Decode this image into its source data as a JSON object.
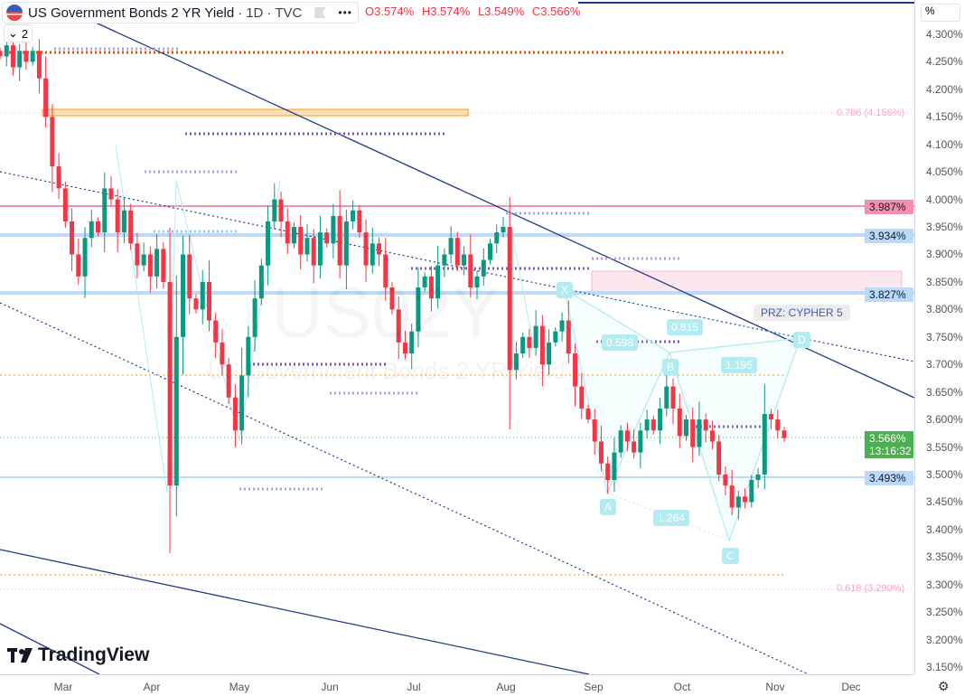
{
  "header": {
    "title": "US Government Bonds 2 YR Yield",
    "interval": "1D",
    "source": "TVC",
    "ohlc": {
      "open": "O3.574%",
      "high": "H3.574%",
      "low": "L3.549%",
      "close": "C3.566%"
    },
    "collapse_count": "2"
  },
  "watermark": {
    "symbol": "US02Y",
    "name": "US Government Bonds 2 YR Yield"
  },
  "logo": "TradingView",
  "colors": {
    "up": "#089981",
    "down": "#f23645",
    "accent_line": "#1e3a8a",
    "harmonic": "#b2ebf2"
  },
  "chart_data": {
    "type": "candlestick",
    "ylabel": "%",
    "ylim": [
      3.125,
      4.33
    ],
    "y_ticks": [
      "4.300%",
      "4.250%",
      "4.200%",
      "4.150%",
      "4.100%",
      "4.050%",
      "4.000%",
      "3.950%",
      "3.900%",
      "3.850%",
      "3.800%",
      "3.750%",
      "3.700%",
      "3.650%",
      "3.600%",
      "3.550%",
      "3.500%",
      "3.450%",
      "3.400%",
      "3.350%",
      "3.300%",
      "3.250%",
      "3.200%",
      "3.150%"
    ],
    "x_ticks": [
      "Mar",
      "Apr",
      "May",
      "Jun",
      "Jul",
      "Aug",
      "Sep",
      "Oct",
      "Nov",
      "Dec"
    ],
    "closes": [
      4.26,
      4.28,
      4.24,
      4.27,
      4.25,
      4.27,
      4.22,
      4.15,
      4.06,
      4.02,
      3.96,
      3.9,
      3.86,
      3.93,
      3.96,
      3.94,
      4.02,
      4.0,
      3.94,
      3.98,
      3.92,
      3.88,
      3.9,
      3.86,
      3.91,
      3.85,
      3.48,
      3.75,
      3.9,
      3.82,
      3.8,
      3.85,
      3.78,
      3.74,
      3.7,
      3.64,
      3.58,
      3.68,
      3.75,
      3.82,
      3.88,
      3.96,
      4.0,
      3.96,
      3.92,
      3.95,
      3.9,
      3.93,
      3.88,
      3.94,
      3.92,
      3.97,
      3.88,
      3.96,
      3.98,
      3.94,
      3.88,
      3.92,
      3.9,
      3.84,
      3.8,
      3.74,
      3.72,
      3.76,
      3.84,
      3.86,
      3.82,
      3.88,
      3.9,
      3.93,
      3.88,
      3.9,
      3.84,
      3.86,
      3.89,
      3.92,
      3.94,
      3.95,
      3.69,
      3.72,
      3.75,
      3.73,
      3.77,
      3.7,
      3.74,
      3.76,
      3.78,
      3.72,
      3.66,
      3.62,
      3.6,
      3.56,
      3.52,
      3.49,
      3.54,
      3.58,
      3.56,
      3.54,
      3.58,
      3.6,
      3.58,
      3.62,
      3.66,
      3.62,
      3.57,
      3.6,
      3.55,
      3.6,
      3.58,
      3.56,
      3.5,
      3.48,
      3.44,
      3.46,
      3.45,
      3.49,
      3.5,
      3.61,
      3.6,
      3.58,
      3.566
    ],
    "price_labels": [
      {
        "value": "3.987%",
        "color": "#f48fb1"
      },
      {
        "value": "3.934%",
        "color": "#bbd9fb"
      },
      {
        "value": "3.827%",
        "color": "#bbd9fb"
      },
      {
        "value": "3.566%",
        "color": "#4caf50",
        "countdown": "13:16:32"
      },
      {
        "value": "3.493%",
        "color": "#bbd9fb"
      }
    ],
    "fib_labels": [
      "0.786 (4.156%)",
      "0.618 (3.290%)"
    ],
    "harmonic": {
      "name": "PRZ: CYPHER 5",
      "points": [
        "X",
        "A",
        "B",
        "C",
        "D"
      ],
      "ratios": [
        "0.598",
        "0.815",
        "1.195",
        "1.264"
      ]
    }
  }
}
